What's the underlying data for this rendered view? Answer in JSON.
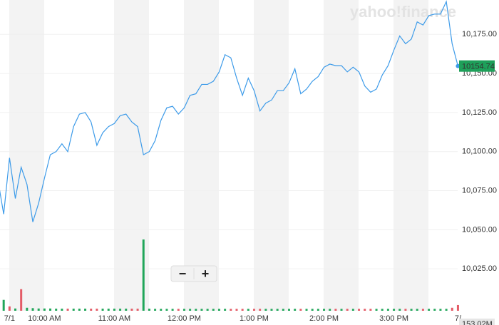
{
  "chart_data": {
    "type": "line",
    "brand": "yahoo!finance",
    "zoom_out": "−",
    "zoom_in": "+",
    "categories": [
      null,
      null,
      "7/1",
      null,
      null,
      null,
      null,
      null,
      "10:00 AM",
      null,
      null,
      null,
      null,
      null,
      null,
      null,
      null,
      null,
      null,
      null,
      "11:00 AM",
      null,
      null,
      null,
      null,
      null,
      null,
      null,
      null,
      null,
      null,
      null,
      "12:00 PM",
      null,
      null,
      null,
      null,
      null,
      null,
      null,
      null,
      null,
      null,
      null,
      "1:00 PM",
      null,
      null,
      null,
      null,
      null,
      null,
      null,
      null,
      null,
      null,
      null,
      "2:00 PM",
      null,
      null,
      null,
      null,
      null,
      null,
      null,
      null,
      null,
      null,
      null,
      "3:00 PM",
      null,
      null,
      null,
      null,
      null,
      null,
      null,
      null,
      null,
      null,
      "7/"
    ],
    "series": [
      {
        "color": "#3d9be9",
        "values": [
          10082,
          10060,
          10096,
          10070,
          10090,
          10079,
          10055,
          10067,
          10083,
          10098,
          10100,
          10105,
          10100,
          10116,
          10124,
          10125,
          10119,
          10104,
          10112,
          10116,
          10118,
          10123,
          10124,
          10119,
          10116,
          10098,
          10100,
          10107,
          10120,
          10128,
          10129,
          10124,
          10128,
          10136,
          10137,
          10143,
          10143,
          10145,
          10151,
          10162,
          10160,
          10147,
          10136,
          10147,
          10139,
          10126,
          10131,
          10133,
          10139,
          10139,
          10144,
          10153,
          10137,
          10140,
          10145,
          10148,
          10154,
          10156,
          10155,
          10155,
          10151,
          10154,
          10151,
          10142,
          10138,
          10140,
          10149,
          10155,
          10165,
          10174,
          10169,
          10172,
          10183,
          10181,
          10187,
          10188,
          10188,
          10196,
          10169,
          10154.74
        ]
      }
    ],
    "ylim": [
      10000,
      10197
    ],
    "yticks": [
      {
        "value": 10025,
        "label": "10,025.00"
      },
      {
        "value": 10050,
        "label": "10,050.00"
      },
      {
        "value": 10075,
        "label": "10,075.00"
      },
      {
        "value": 10100,
        "label": "10,100.00"
      },
      {
        "value": 10125,
        "label": "10,125.00"
      },
      {
        "value": 10150,
        "label": "10,150.00"
      },
      {
        "value": 10175,
        "label": "10,175.00"
      }
    ],
    "grid": true,
    "last_color": "#1ea05a",
    "volume": {
      "values": [
        60,
        290,
        115,
        60,
        575,
        80,
        70,
        60,
        60,
        60,
        55,
        55,
        55,
        55,
        55,
        55,
        55,
        55,
        55,
        55,
        55,
        55,
        55,
        55,
        55,
        1900,
        55,
        50,
        50,
        50,
        50,
        50,
        50,
        50,
        50,
        50,
        50,
        50,
        50,
        50,
        50,
        50,
        50,
        50,
        50,
        50,
        50,
        50,
        50,
        50,
        50,
        50,
        50,
        50,
        50,
        50,
        50,
        50,
        50,
        50,
        50,
        50,
        50,
        50,
        50,
        50,
        50,
        50,
        50,
        50,
        50,
        50,
        50,
        50,
        50,
        50,
        50,
        50,
        80,
        153.02
      ],
      "colors": [
        "#21a65a",
        "#21a65a",
        "#e45b66",
        "#21a65a",
        "#e45b66",
        "#21a65a",
        "#21a65a",
        "#21a65a",
        "#21a65a",
        "#21a65a",
        "#21a65a",
        "#21a65a",
        "#e45b66",
        "#21a65a",
        "#21a65a",
        "#21a65a",
        "#e45b66",
        "#e45b66",
        "#21a65a",
        "#21a65a",
        "#21a65a",
        "#21a65a",
        "#21a65a",
        "#e45b66",
        "#e45b66",
        "#21a65a",
        "#21a65a",
        "#21a65a",
        "#21a65a",
        "#21a65a",
        "#21a65a",
        "#e45b66",
        "#21a65a",
        "#21a65a",
        "#21a65a",
        "#21a65a",
        "#21a65a",
        "#21a65a",
        "#21a65a",
        "#21a65a",
        "#e45b66",
        "#e45b66",
        "#e45b66",
        "#21a65a",
        "#e45b66",
        "#e45b66",
        "#21a65a",
        "#21a65a",
        "#21a65a",
        "#21a65a",
        "#21a65a",
        "#21a65a",
        "#e45b66",
        "#21a65a",
        "#21a65a",
        "#21a65a",
        "#21a65a",
        "#21a65a",
        "#e45b66",
        "#21a65a",
        "#e45b66",
        "#21a65a",
        "#e45b66",
        "#e45b66",
        "#e45b66",
        "#21a65a",
        "#21a65a",
        "#21a65a",
        "#21a65a",
        "#21a65a",
        "#e45b66",
        "#21a65a",
        "#21a65a",
        "#e45b66",
        "#21a65a",
        "#21a65a",
        "#21a65a",
        "#21a65a",
        "#e45b66",
        "#e45b66"
      ],
      "ylim": [
        0,
        1900
      ],
      "last_label": "153.02M"
    }
  }
}
